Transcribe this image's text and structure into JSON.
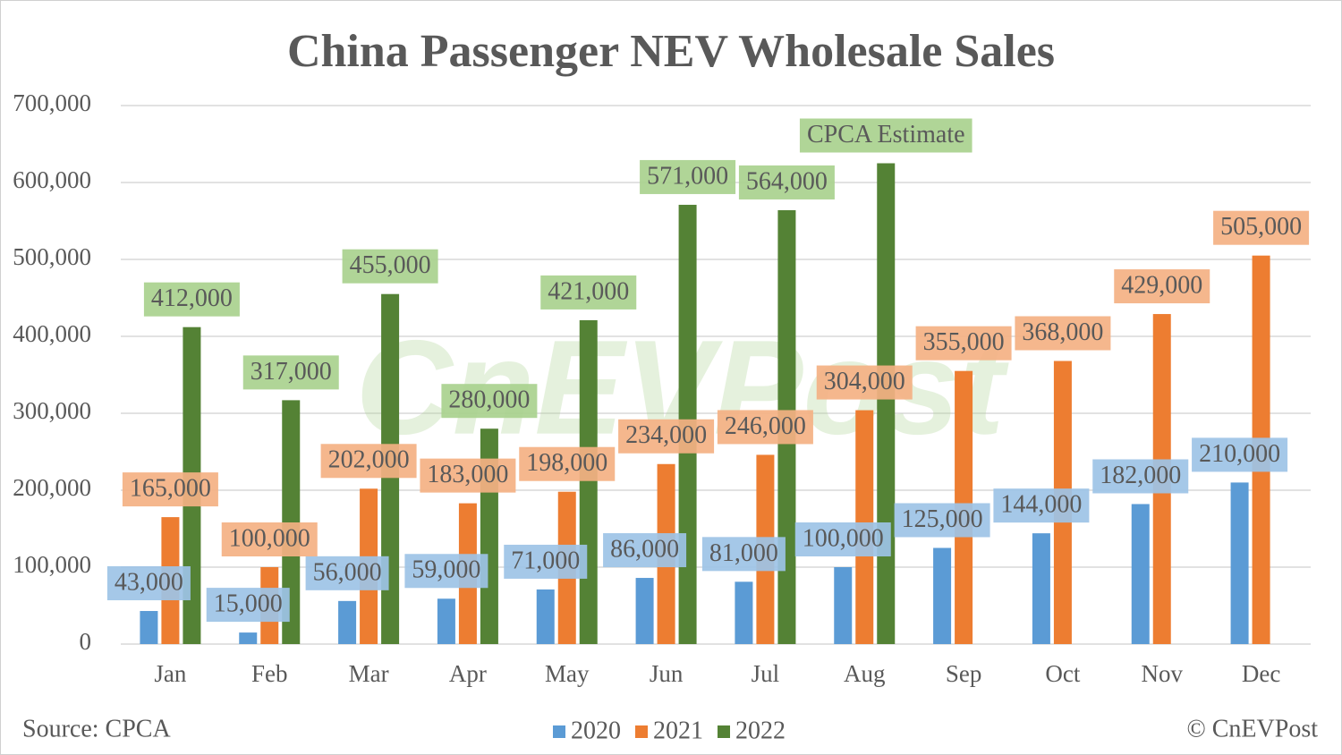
{
  "chart_data": {
    "type": "bar",
    "title": "China Passenger NEV Wholesale Sales",
    "categories": [
      "Jan",
      "Feb",
      "Mar",
      "Apr",
      "May",
      "Jun",
      "Jul",
      "Aug",
      "Sep",
      "Oct",
      "Nov",
      "Dec"
    ],
    "series": [
      {
        "name": "2020",
        "color": "#5b9bd5",
        "label_color": "#9dc3e6",
        "values": [
          43000,
          15000,
          56000,
          59000,
          71000,
          86000,
          81000,
          100000,
          125000,
          144000,
          182000,
          210000
        ],
        "value_labels": [
          "43,000",
          "15,000",
          "56,000",
          "59,000",
          "71,000",
          "86,000",
          "81,000",
          "100,000",
          "125,000",
          "144,000",
          "182,000",
          "210,000"
        ]
      },
      {
        "name": "2021",
        "color": "#ed7d31",
        "label_color": "#f4b183",
        "values": [
          165000,
          100000,
          202000,
          183000,
          198000,
          234000,
          246000,
          304000,
          355000,
          368000,
          429000,
          505000
        ],
        "value_labels": [
          "165,000",
          "100,000",
          "202,000",
          "183,000",
          "198,000",
          "234,000",
          "246,000",
          "304,000",
          "355,000",
          "368,000",
          "429,000",
          "505,000"
        ]
      },
      {
        "name": "2022",
        "color": "#548235",
        "label_color": "#a9d18e",
        "values": [
          412000,
          317000,
          455000,
          280000,
          421000,
          571000,
          564000,
          625000,
          null,
          null,
          null,
          null
        ],
        "value_labels": [
          "412,000",
          "317,000",
          "455,000",
          "280,000",
          "421,000",
          "571,000",
          "564,000",
          null,
          null,
          null,
          null,
          null
        ]
      }
    ],
    "annotation": "CPCA Estimate",
    "ylim": [
      0,
      700000
    ],
    "yticks": [
      0,
      {
        "value": 100000,
        "label": "100,000"
      },
      {
        "value": 200000,
        "label": "200,000"
      },
      {
        "value": 300000,
        "label": "300,000"
      },
      {
        "value": 400000,
        "label": "400,000"
      },
      {
        "value": 500000,
        "label": "500,000"
      },
      {
        "value": 600000,
        "label": "600,000"
      },
      {
        "value": 700000,
        "label": "700,000"
      }
    ],
    "grid": true,
    "source": "Source: CPCA",
    "credit": "© CnEVPost",
    "watermark": "CnEVPost"
  }
}
